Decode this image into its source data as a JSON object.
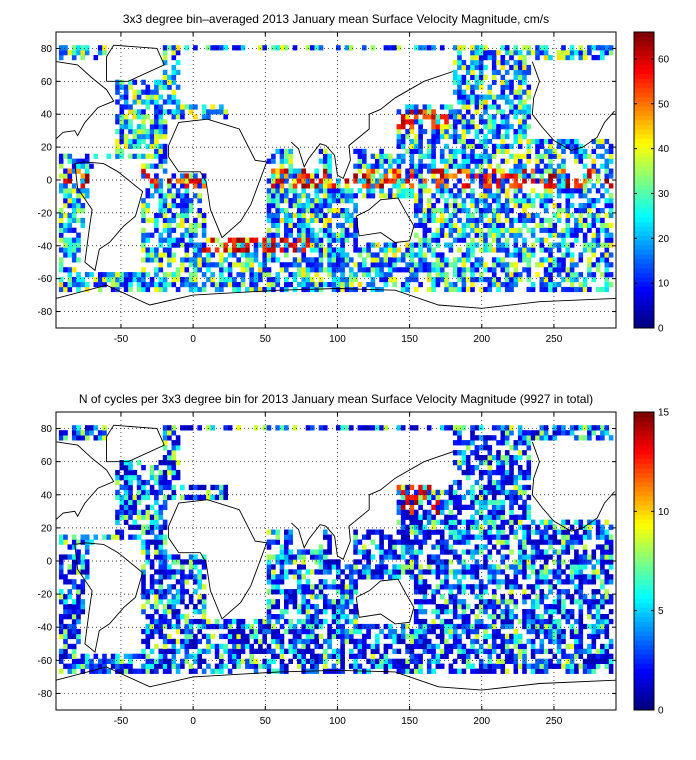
{
  "chart_data": [
    {
      "type": "heatmap",
      "title": "3x3 degree bin–averaged 2013 January mean Surface Velocity Magnitude, cm/s",
      "xlim": [
        -95,
        293
      ],
      "ylim": [
        -90,
        90
      ],
      "xticks": [
        -50,
        0,
        50,
        100,
        150,
        200,
        250
      ],
      "yticks": [
        80,
        60,
        40,
        20,
        0,
        -20,
        -40,
        -60,
        -80
      ],
      "grid": true,
      "colorbar": {
        "min": 0,
        "max": 66,
        "ticks": [
          0,
          10,
          20,
          30,
          40,
          50,
          60
        ],
        "colormap": "jet",
        "placement": "right"
      },
      "bin_size_deg": 3
    },
    {
      "type": "heatmap",
      "title": "N of cycles per 3x3 degree bin for 2013 January mean Surface Velocity Magnitude (9927 in total)",
      "xlim": [
        -95,
        293
      ],
      "ylim": [
        -90,
        90
      ],
      "xticks": [
        -50,
        0,
        50,
        100,
        150,
        200,
        250
      ],
      "yticks": [
        80,
        60,
        40,
        20,
        0,
        -20,
        -40,
        -60,
        -80
      ],
      "grid": true,
      "colorbar": {
        "min": 0,
        "max": 15,
        "ticks": [
          0,
          5,
          10,
          15
        ],
        "colormap": "jet",
        "placement": "right"
      },
      "bin_size_deg": 3
    }
  ]
}
